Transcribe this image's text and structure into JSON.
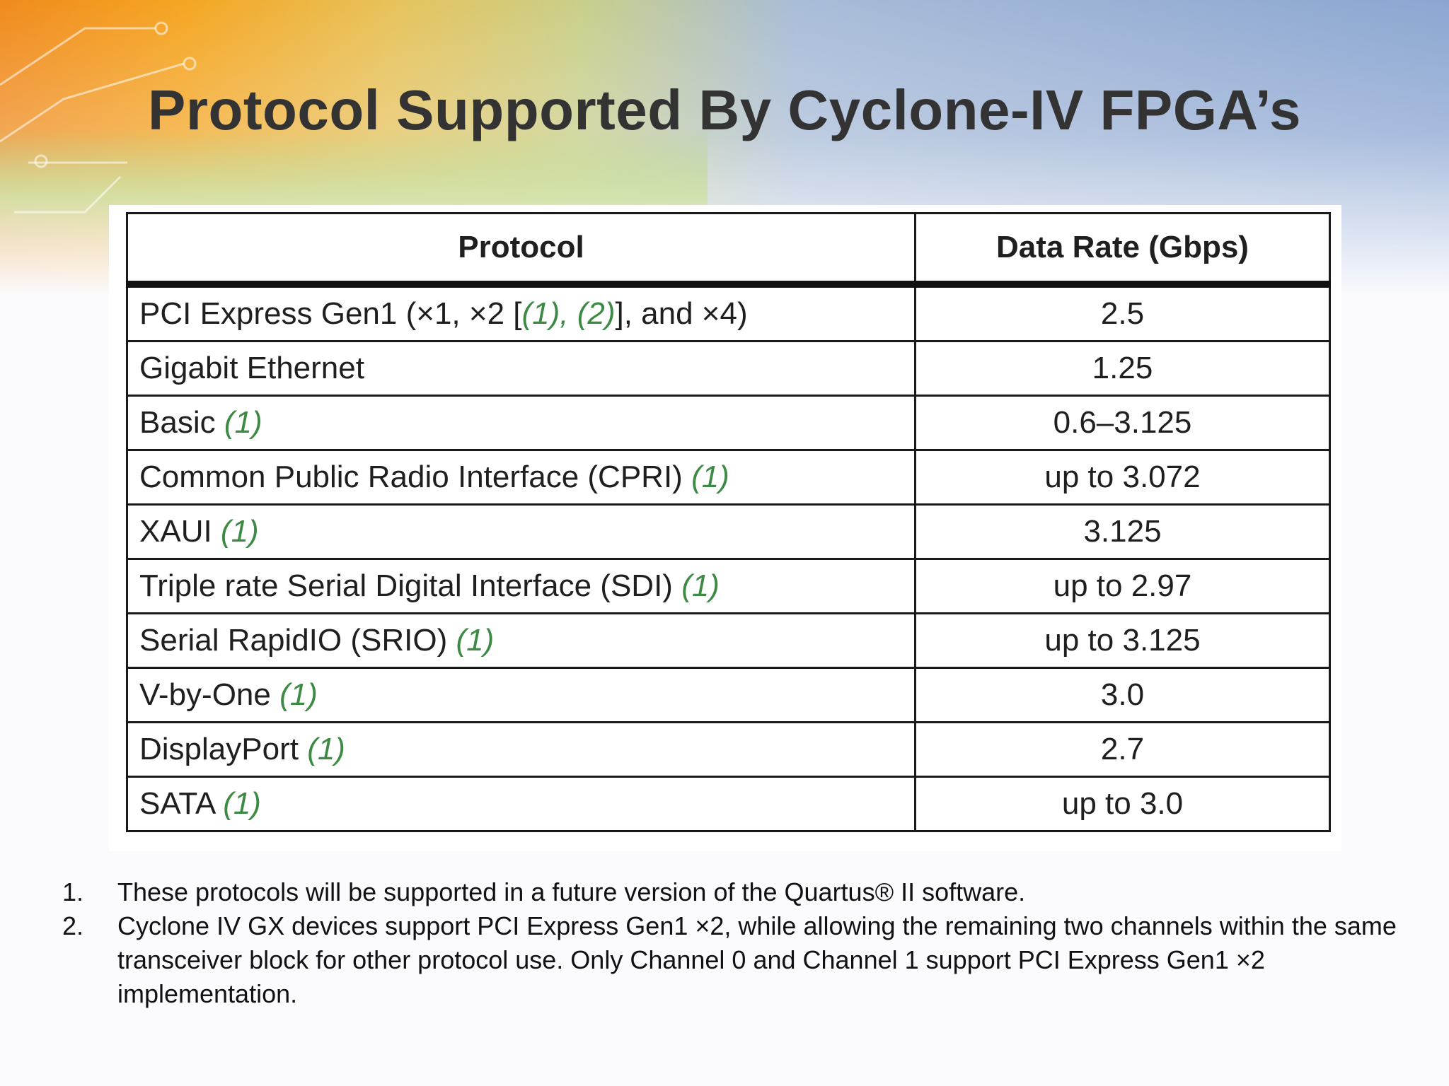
{
  "slide": {
    "title": "Protocol Supported By Cyclone-IV FPGA’s"
  },
  "table": {
    "headers": [
      "Protocol",
      "Data Rate (Gbps)"
    ],
    "rows": [
      {
        "protocol": "PCI Express Gen1 (×1, ×2 [",
        "notes": "(1), (2)",
        "suffix": "], and ×4)",
        "rate": "2.5"
      },
      {
        "protocol": "Gigabit Ethernet",
        "notes": "",
        "suffix": "",
        "rate": "1.25"
      },
      {
        "protocol": "Basic ",
        "notes": "(1)",
        "suffix": "",
        "rate": "0.6–3.125"
      },
      {
        "protocol": "Common Public Radio Interface (CPRI) ",
        "notes": "(1)",
        "suffix": "",
        "rate": "up to 3.072"
      },
      {
        "protocol": "XAUI ",
        "notes": "(1)",
        "suffix": "",
        "rate": "3.125"
      },
      {
        "protocol": "Triple rate Serial Digital Interface (SDI) ",
        "notes": "(1)",
        "suffix": "",
        "rate": "up to 2.97"
      },
      {
        "protocol": "Serial RapidIO (SRIO) ",
        "notes": "(1)",
        "suffix": "",
        "rate": "up to 3.125"
      },
      {
        "protocol": "V-by-One ",
        "notes": "(1)",
        "suffix": "",
        "rate": "3.0"
      },
      {
        "protocol": "DisplayPort ",
        "notes": "(1)",
        "suffix": "",
        "rate": "2.7"
      },
      {
        "protocol": "SATA ",
        "notes": "(1)",
        "suffix": "",
        "rate": "up to 3.0"
      }
    ]
  },
  "footnotes": [
    {
      "num": "1.",
      "text": "These protocols will be supported in a future version of the Quartus® II software."
    },
    {
      "num": "2.",
      "text": "Cyclone IV GX devices support PCI Express Gen1 ×2, while allowing the remaining two channels within the same transceiver block for other protocol use. Only Channel 0 and Channel 1 support PCI Express Gen1 ×2 implementation."
    }
  ],
  "colors": {
    "title": "#333333",
    "note_ref": "#3c8a44",
    "orange": "#f39a1e",
    "green": "#a8c640",
    "blue": "#8aa6d0"
  }
}
